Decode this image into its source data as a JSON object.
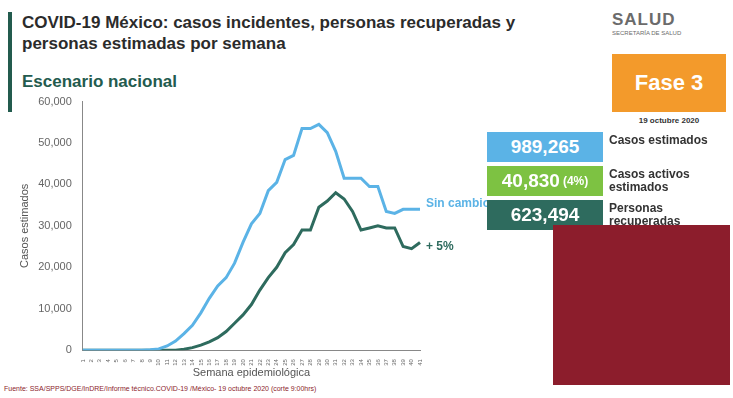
{
  "header": {
    "logo": "SALUD",
    "logo_sub": "SECRETARÍA DE SALUD"
  },
  "phase": "Fase 3",
  "date": "19 octubre 2020",
  "stats": [
    {
      "value": "989,265",
      "label": "Casos estimados"
    },
    {
      "value": "40,830",
      "note": "(4%)",
      "label": "Casos activos estimados"
    },
    {
      "value": "623,494",
      "label": "Personas recuperadas"
    }
  ],
  "source": "Fuente: SSA/SPPS/DGE/InDRE/Informe técnico.COVID-19 /México- 19 octubre 2020 (corte 9:00hrs)",
  "chart_data": {
    "type": "line",
    "title": "COVID-19 México: casos incidentes, personas recuperadas y personas estimadas por semana",
    "subtitle": "Escenario nacional",
    "x_label": "Semana epidemiológica",
    "y_label": "Casos estimados",
    "categories": [
      "1",
      "2",
      "3",
      "4",
      "5",
      "6",
      "7",
      "8",
      "9",
      "10",
      "11",
      "12",
      "13",
      "14",
      "15",
      "16",
      "17",
      "18",
      "19",
      "20",
      "21",
      "22",
      "23",
      "24",
      "25",
      "26",
      "27",
      "28",
      "29",
      "30",
      "31",
      "32",
      "33",
      "34",
      "35",
      "36",
      "37",
      "38",
      "39",
      "40",
      "41"
    ],
    "series": [
      {
        "name": "Sin cambio",
        "color": "#5bb3e6",
        "values": [
          0,
          0,
          0,
          0,
          0,
          0,
          0,
          0,
          100,
          300,
          1000,
          2200,
          4000,
          6000,
          9000,
          12500,
          15500,
          17500,
          21000,
          26000,
          30500,
          33000,
          38500,
          40500,
          46000,
          47000,
          53500,
          53500,
          54500,
          52500,
          48000,
          41500,
          41500,
          41500,
          39500,
          39500,
          33500,
          33000,
          34000,
          34000,
          34000
        ]
      },
      {
        "name": "+ 5%",
        "color": "#2e6b5e",
        "values": [
          0,
          0,
          0,
          0,
          0,
          0,
          0,
          0,
          0,
          0,
          0,
          0,
          200,
          600,
          1200,
          2000,
          3000,
          4500,
          6500,
          8500,
          11000,
          14500,
          17500,
          20000,
          23500,
          25500,
          29000,
          29000,
          34500,
          36000,
          38000,
          36500,
          33500,
          29000,
          29500,
          30000,
          29500,
          29500,
          25000,
          24500,
          26000
        ]
      }
    ],
    "ylim": [
      0,
      60000
    ],
    "yticks": [
      0,
      {
        "value": 10000,
        "label": "10,000"
      },
      {
        "value": 20000,
        "label": "20,000"
      },
      {
        "value": 30000,
        "label": "30,000"
      },
      {
        "value": 40000,
        "label": "40,000"
      },
      {
        "value": 50000,
        "label": "50,000"
      },
      {
        "value": 60000,
        "label": "60,000"
      }
    ],
    "grid": false,
    "legend": false
  }
}
